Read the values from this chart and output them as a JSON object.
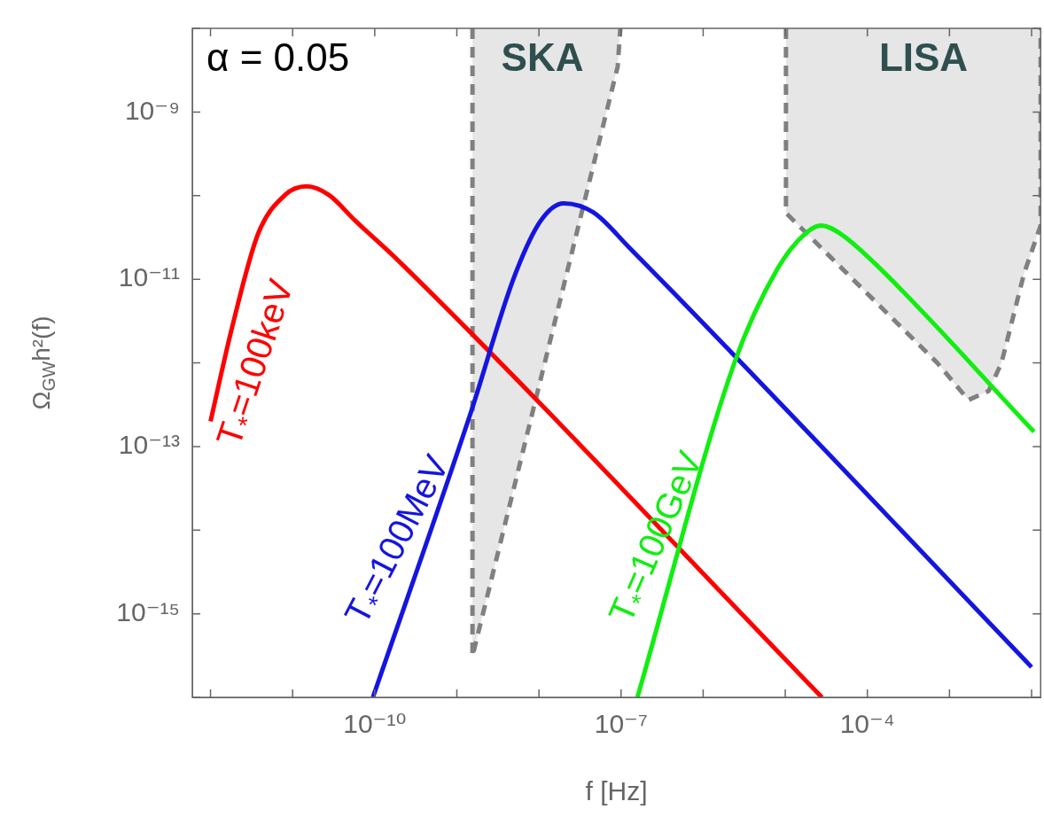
{
  "chart_data": {
    "type": "line",
    "xlabel": "f [Hz]",
    "ylabel": "Ω$_{GW}$h²(f)",
    "log": "xy",
    "xlim": [
      6.3e-13,
      0.0129
    ],
    "ylim": [
      1e-16,
      1e-08
    ],
    "xticks": [
      {
        "value": 1e-12,
        "label": null
      },
      {
        "value": 1e-11,
        "label": null
      },
      {
        "value": 1e-10,
        "label": "10⁻¹⁰"
      },
      {
        "value": 1e-09,
        "label": null
      },
      {
        "value": 1e-08,
        "label": null
      },
      {
        "value": 1e-07,
        "label": "10⁻⁷"
      },
      {
        "value": 1e-06,
        "label": null
      },
      {
        "value": 1e-05,
        "label": null
      },
      {
        "value": 0.0001,
        "label": "10⁻⁴"
      },
      {
        "value": 0.001,
        "label": null
      },
      {
        "value": 0.01,
        "label": null
      }
    ],
    "yticks": [
      {
        "value": 1e-16,
        "label": null
      },
      {
        "value": 1e-15,
        "label": "10⁻¹⁵"
      },
      {
        "value": 1e-14,
        "label": null
      },
      {
        "value": 1e-13,
        "label": "10⁻¹³"
      },
      {
        "value": 1e-12,
        "label": null
      },
      {
        "value": 1e-11,
        "label": "10⁻¹¹"
      },
      {
        "value": 1e-10,
        "label": null
      },
      {
        "value": 1e-09,
        "label": "10⁻⁹"
      },
      {
        "value": 1e-08,
        "label": null
      }
    ],
    "annotations": [
      "α = 0.05"
    ],
    "series": [
      {
        "name": "SKA",
        "type": "area",
        "color": "#808080",
        "line_style": "dashed",
        "x": [
          1.55e-09,
          1.55e-09,
          9.1e-08,
          9.8e-08
        ],
        "values": [
          1e-08,
          3.1e-16,
          3.5e-09,
          1e-08
        ]
      },
      {
        "name": "LISA",
        "type": "area",
        "color": "#808080",
        "line_style": "dashed",
        "x": [
          1.02e-05,
          1.02e-05,
          0.00071,
          0.0017,
          0.003,
          0.0043,
          0.0081,
          0.0129,
          0.0129
        ],
        "values": [
          1e-08,
          6.2e-11,
          1e-12,
          3.6e-13,
          4.6e-13,
          1e-12,
          1.17e-11,
          4.4e-11,
          1e-08
        ]
      },
      {
        "name": "T$_{*}$=100keV",
        "color": "#ff0000",
        "x": [
          1e-12,
          1.82e-12,
          3.8e-12,
          8.1e-12,
          1.48e-11,
          2.75e-11,
          5.8e-11,
          2e-10,
          2.8e-05
        ],
        "values": [
          2e-13,
          2.6e-12,
          3.5e-11,
          1.02e-10,
          1.29e-10,
          1.02e-10,
          5e-11,
          1.62e-11,
          1e-16
        ]
      },
      {
        "name": "T$_{*}$=100MeV",
        "color": "#1515e0",
        "x": [
          9.5e-11,
          1.45e-09,
          5e-09,
          1.05e-08,
          2e-08,
          4.6e-08,
          1.23e-07,
          0.01
        ],
        "values": [
          1e-16,
          2.4e-13,
          1.07e-11,
          5e-11,
          8.1e-11,
          6.3e-11,
          2.45e-11,
          2.3e-16
        ]
      },
      {
        "name": "T$_{*}$=100GeV",
        "color": "#11ee11",
        "x": [
          1.58e-07,
          2.4e-06,
          8.1e-06,
          1.74e-05,
          2.75e-05,
          4.7e-05,
          0.000123,
          0.0107
        ],
        "values": [
          1e-16,
          1e-12,
          1.35e-11,
          3.5e-11,
          4.4e-11,
          3.5e-11,
          1.55e-11,
          1.5e-13
        ]
      }
    ]
  }
}
